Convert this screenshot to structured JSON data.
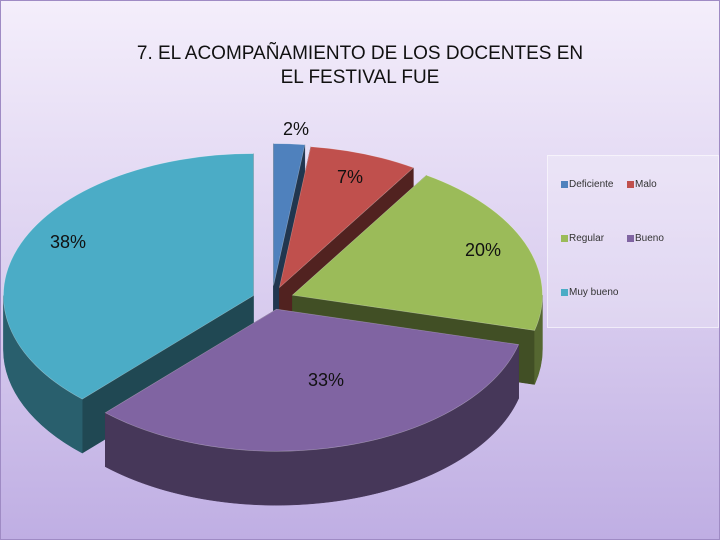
{
  "chart_data": {
    "type": "pie",
    "title": "7. EL ACOMPAÑAMIENTO DE LOS DOCENTES EN\nEL FESTIVAL FUE",
    "categories": [
      "Deficiente",
      "Malo",
      "Regular",
      "Bueno",
      "Muy bueno"
    ],
    "values": [
      2,
      7,
      20,
      33,
      38
    ],
    "data_labels": [
      "2%",
      "7%",
      "20%",
      "33%",
      "38%"
    ],
    "colors": [
      "#4f81bd",
      "#c0504d",
      "#9bbb59",
      "#8064a2",
      "#4bacc6"
    ],
    "style": "3d-exploded",
    "legend": {
      "placement": "right",
      "columns": 2
    }
  }
}
